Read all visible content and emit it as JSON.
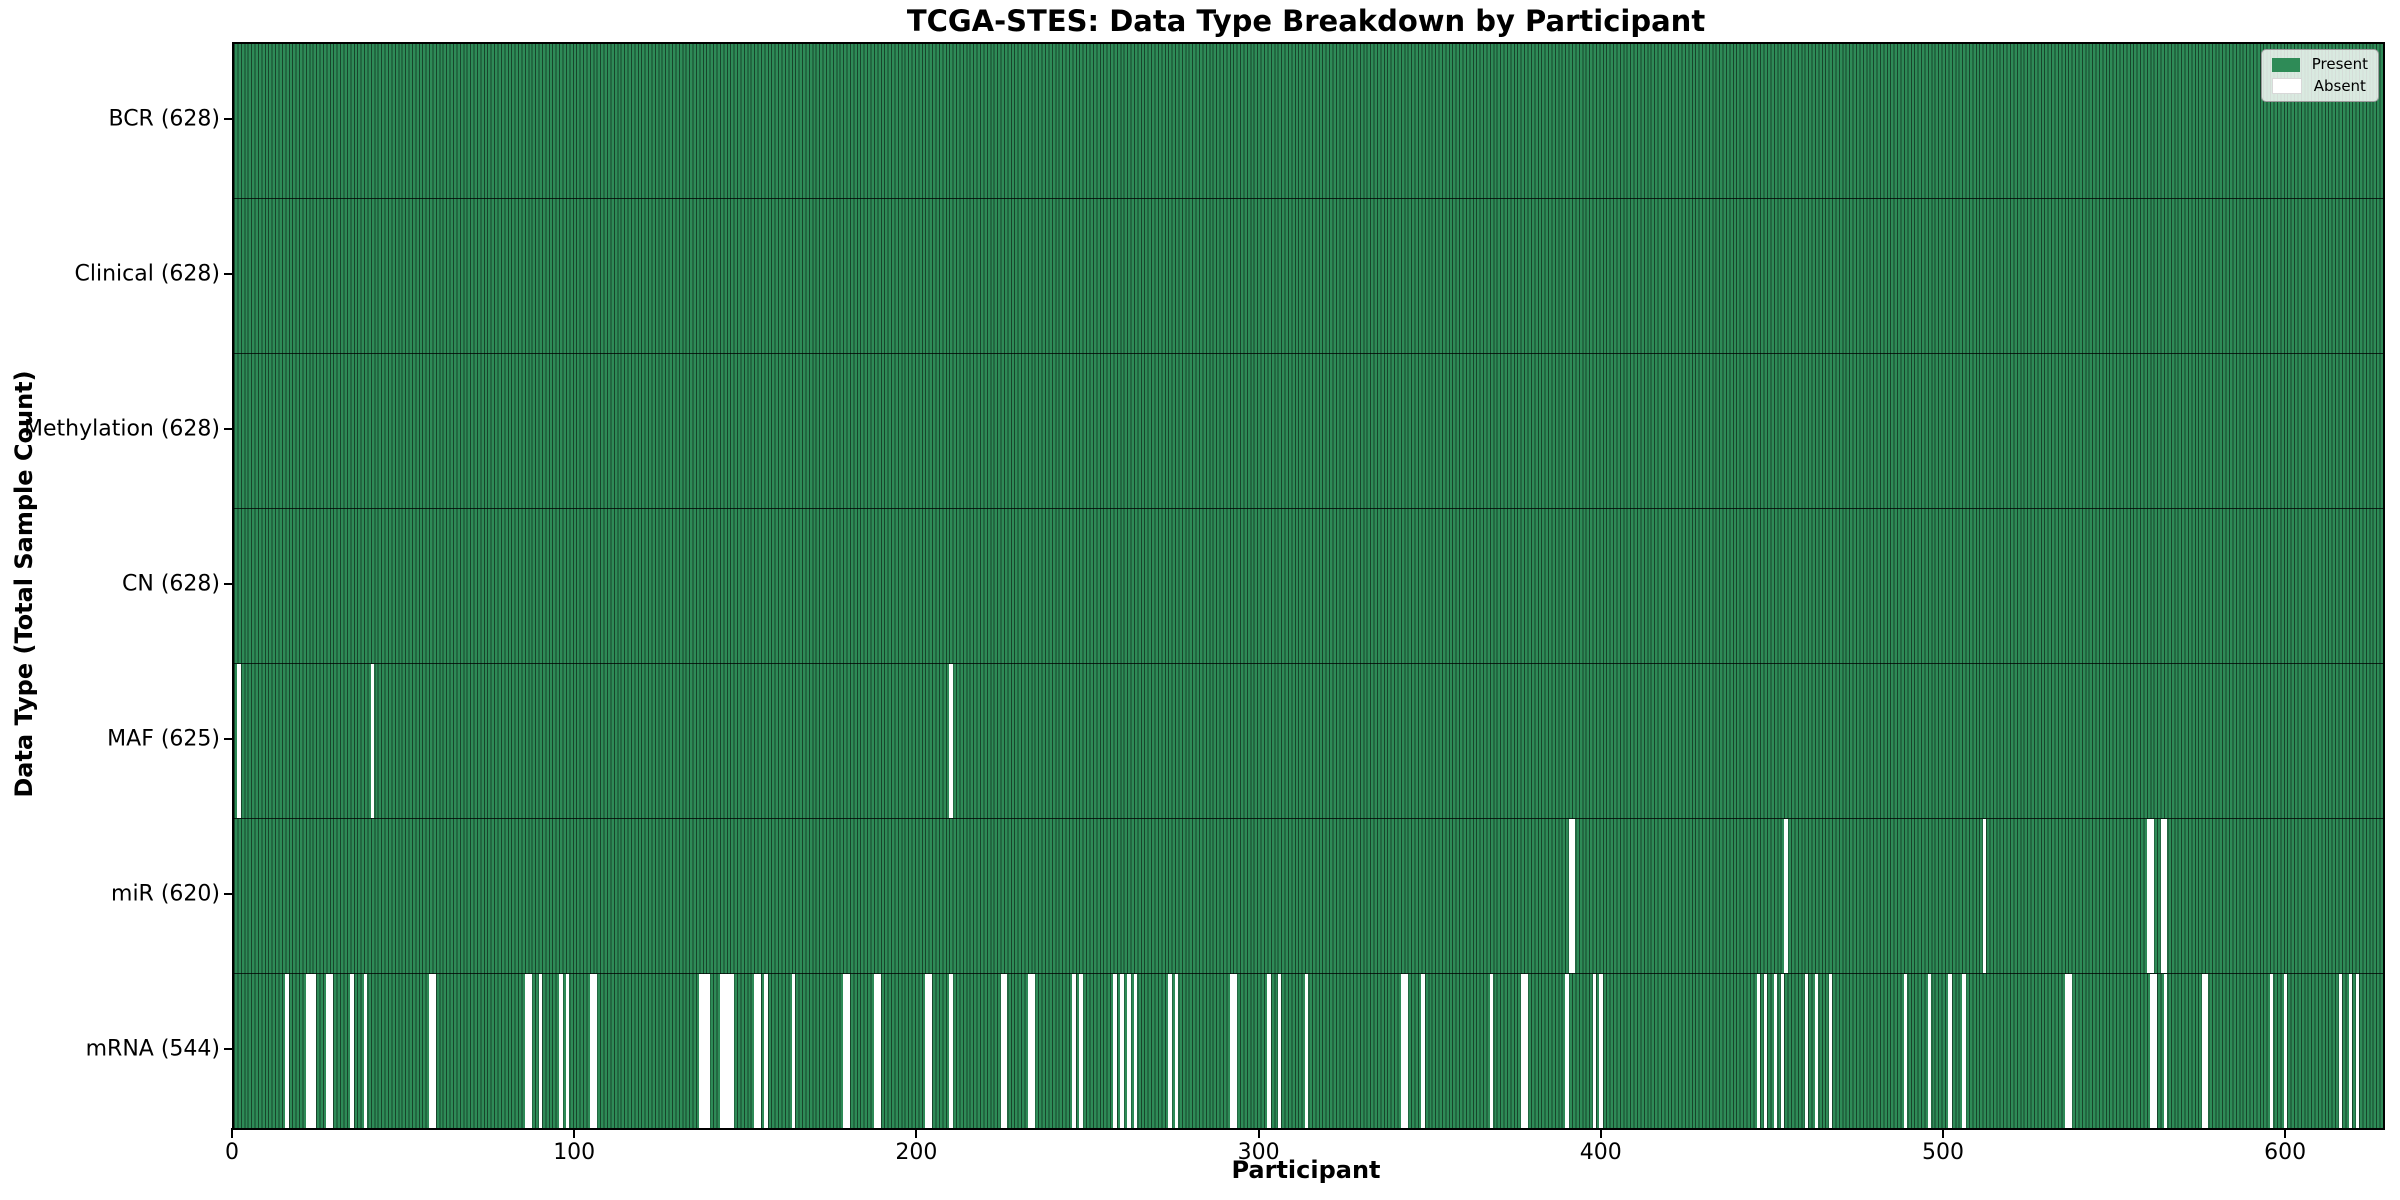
{
  "chart_data": {
    "type": "heatmap",
    "title": "TCGA-STES: Data Type Breakdown by Participant",
    "xlabel": "Participant",
    "ylabel": "Data Type (Total Sample Count)",
    "x_range": [
      0,
      628
    ],
    "x_ticks": [
      0,
      100,
      200,
      300,
      400,
      500,
      600
    ],
    "n_participants": 628,
    "grid": false,
    "legend_position": "upper right",
    "colors": {
      "present": "#2e8b57",
      "absent": "#ffffff",
      "bar_edge": "rgba(0,0,0,0.5)",
      "row_divider": "rgba(0,0,0,0.75)"
    },
    "legend": [
      {
        "label": "Present",
        "color": "#2e8b57"
      },
      {
        "label": "Absent",
        "color": "#ffffff"
      }
    ],
    "rows": [
      {
        "label": "BCR (628)",
        "count": 628,
        "absent": []
      },
      {
        "label": "Clinical (628)",
        "count": 628,
        "absent": []
      },
      {
        "label": "Methylation (628)",
        "count": 628,
        "absent": []
      },
      {
        "label": "CN (628)",
        "count": 628,
        "absent": []
      },
      {
        "label": "MAF (625)",
        "count": 625,
        "absent": [
          1,
          40,
          209
        ]
      },
      {
        "label": "miR (620)",
        "count": 620,
        "absent": [
          390,
          391,
          453,
          511,
          559,
          560,
          563,
          564
        ]
      },
      {
        "label": "mRNA (544)",
        "count": 544,
        "absent": [
          15,
          21,
          22,
          23,
          27,
          28,
          34,
          38,
          57,
          58,
          85,
          86,
          89,
          95,
          97,
          104,
          105,
          136,
          137,
          138,
          142,
          143,
          144,
          145,
          152,
          153,
          155,
          163,
          178,
          179,
          187,
          188,
          202,
          203,
          209,
          224,
          225,
          232,
          233,
          245,
          247,
          257,
          259,
          261,
          263,
          273,
          275,
          291,
          292,
          302,
          305,
          313,
          341,
          342,
          347,
          367,
          376,
          377,
          389,
          397,
          399,
          445,
          447,
          450,
          452,
          459,
          462,
          466,
          488,
          495,
          501,
          505,
          535,
          536,
          560,
          561,
          564,
          575,
          576,
          595,
          599,
          615,
          618,
          620
        ]
      }
    ]
  }
}
